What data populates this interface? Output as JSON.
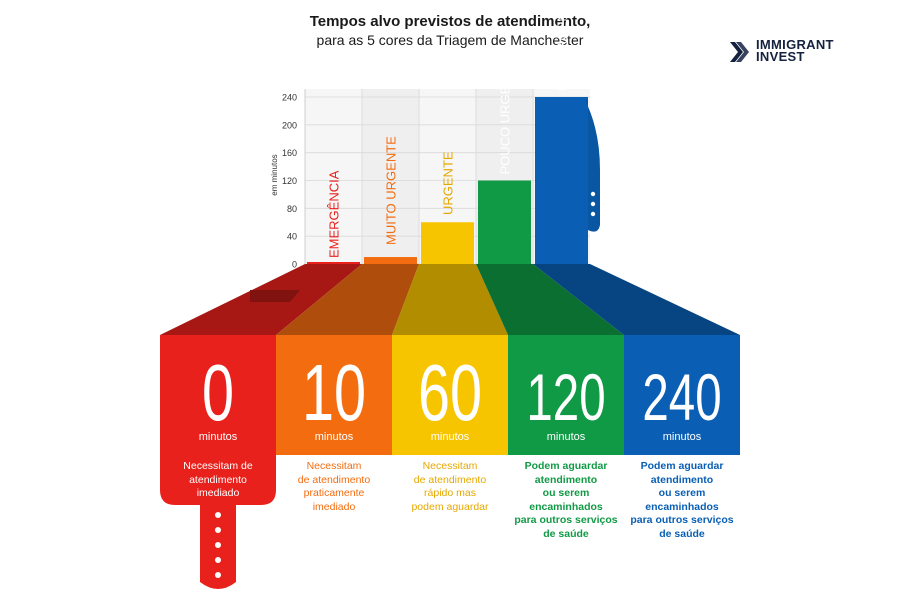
{
  "title": "Tempos alvo previstos de atendimento,",
  "subtitle": "para as 5 cores da Triagem de Manchester",
  "logo": {
    "line1": "IMMIGRANT",
    "line2": "INVEST"
  },
  "chart_data": {
    "type": "bar",
    "title": "Tempos alvo previstos de atendimento, para as 5 cores da Triagem de Manchester",
    "ylabel": "em minutos",
    "ylim": [
      0,
      240
    ],
    "yticks": [
      "0",
      "40",
      "80",
      "120",
      "160",
      "200",
      "240"
    ],
    "grid": true,
    "categories": [
      "EMERGÊNCIA",
      "MUITO URGENTE",
      "URGENTE",
      "POUCO URGENTE",
      "NÃO URGENTE"
    ],
    "values": [
      0,
      10,
      60,
      120,
      240
    ],
    "unit_label": "minutos",
    "colors": [
      "#e8211c",
      "#f36d10",
      "#f7c400",
      "#119a45",
      "#0a5fb4"
    ],
    "label_colors": [
      "#e8211c",
      "#f36d10",
      "#e6a800",
      "#119a45",
      "#0a5fb4"
    ],
    "descriptions": [
      [
        "Necessitam de",
        "atendimento",
        "imediado"
      ],
      [
        "Necessitam",
        "de atendimento",
        "praticamente",
        "imediado"
      ],
      [
        "Necessitam",
        "de atendimento",
        "rápido mas",
        "podem aguardar"
      ],
      [
        "Podem aguardar",
        "atendimento",
        "ou serem",
        "encaminhados",
        "para outros serviços",
        "de saúde"
      ],
      [
        "Podem aguardar",
        "atendimento",
        "ou serem",
        "encaminhados",
        "para outros serviços",
        "de saúde"
      ]
    ]
  }
}
